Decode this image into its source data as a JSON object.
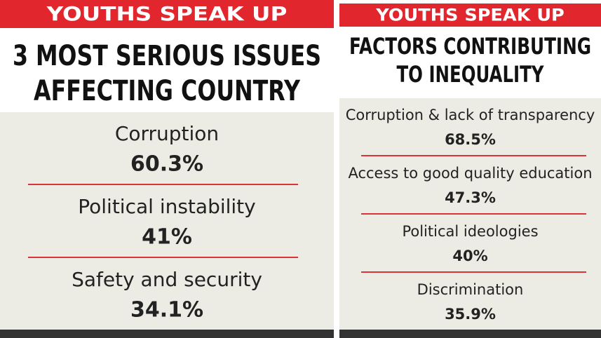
{
  "panels": [
    {
      "banner": "YOUTHS SPEAK UP",
      "title": [
        "3 MOST SERIOUS ISSUES",
        "AFFECTING COUNTRY"
      ],
      "items": [
        {
          "label": "Corruption",
          "value": "60.3%"
        },
        {
          "label": "Political instability",
          "value": "41%"
        },
        {
          "label": "Safety and security",
          "value": "34.1%"
        }
      ]
    },
    {
      "banner": "YOUTHS SPEAK UP",
      "title": [
        "FACTORS CONTRIBUTING",
        "TO INEQUALITY"
      ],
      "items": [
        {
          "label": "Corruption & lack of transparency",
          "value": "68.5%"
        },
        {
          "label": "Access to good quality education",
          "value": "47.3%"
        },
        {
          "label": "Political ideologies",
          "value": "40%"
        },
        {
          "label": "Discrimination",
          "value": "35.9%"
        }
      ]
    }
  ]
}
